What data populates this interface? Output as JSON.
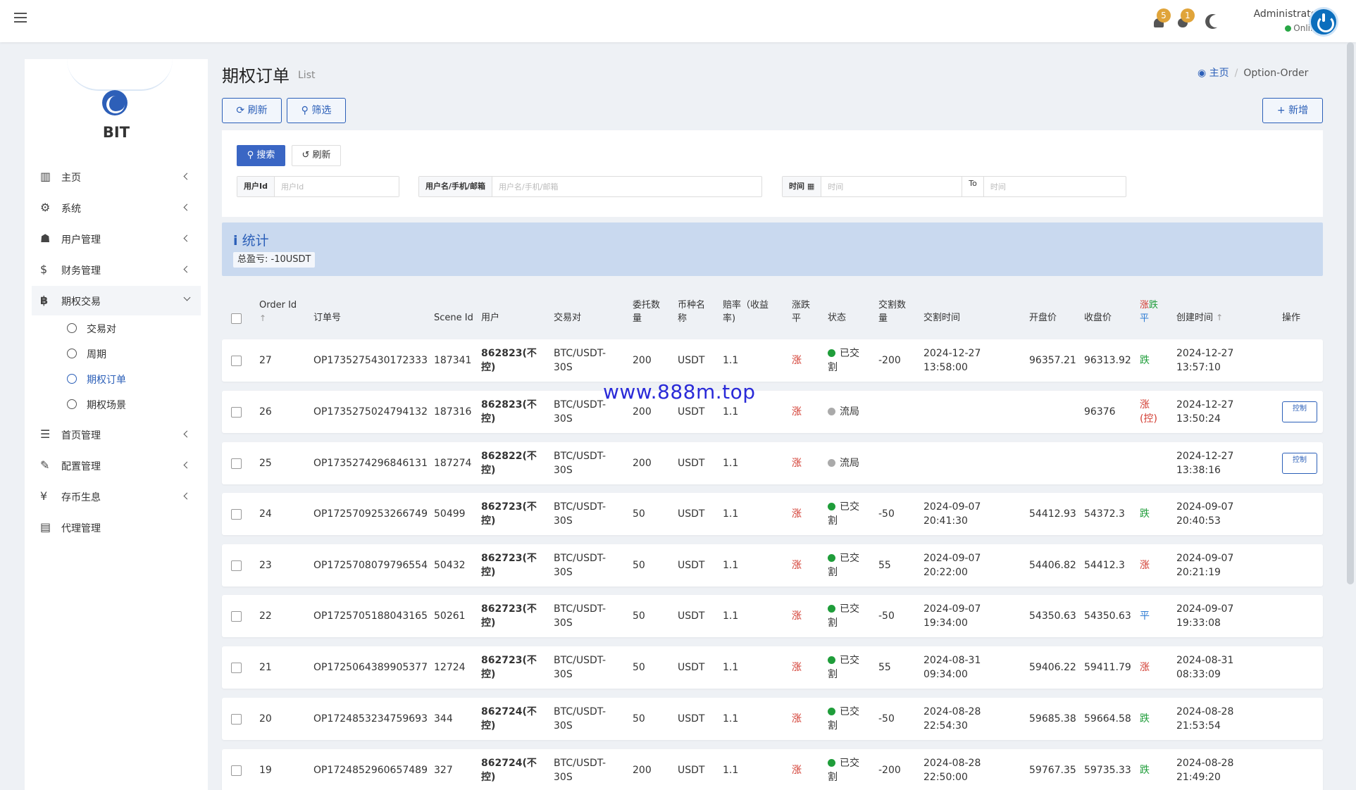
{
  "topbar": {
    "notif_count": "5",
    "message_count": "1",
    "user_name": "Administrator",
    "user_status": "Online"
  },
  "sidebar": {
    "logo_text": "BIT",
    "menu": [
      {
        "label": "主页",
        "icon": "chart-icon"
      },
      {
        "label": "系统",
        "icon": "gear-icon"
      },
      {
        "label": "用户管理",
        "icon": "users-icon"
      },
      {
        "label": "财务管理",
        "icon": "dollar-icon"
      },
      {
        "label": "期权交易",
        "icon": "bitcoin-icon"
      },
      {
        "label": "首页管理",
        "icon": "list-icon"
      },
      {
        "label": "配置管理",
        "icon": "wrench-icon"
      },
      {
        "label": "存币生息",
        "icon": "yen-icon"
      },
      {
        "label": "代理管理",
        "icon": "id-card-icon"
      }
    ],
    "submenu": [
      "交易对",
      "周期",
      "期权订单",
      "期权场景"
    ]
  },
  "page": {
    "title": "期权订单",
    "subtitle": "List",
    "breadcrumb_home": "主页",
    "breadcrumb_current": "Option-Order",
    "refresh_label": "刷新",
    "filter_label": "筛选",
    "add_label": "新增"
  },
  "filters": {
    "search_label": "搜索",
    "reset_label": "刷新",
    "userid_label": "用户Id",
    "userid_placeholder": "用户Id",
    "username_label": "用户名/手机/邮箱",
    "username_placeholder": "用户名/手机/邮箱",
    "time_label": "时间",
    "time_from_placeholder": "时间",
    "to_label": "To",
    "time_to_placeholder": "时间"
  },
  "stats": {
    "title": "统计",
    "total_profit": "总盈亏: -10USDT"
  },
  "table": {
    "headers": {
      "order_id": "Order Id",
      "order_no": "订单号",
      "scene_id": "Scene Id",
      "user": "用户",
      "pair": "交易对",
      "amount": "委托数量",
      "coin": "币种名称",
      "rate": "赔率（收益率)",
      "direction": "涨跌平",
      "status": "状态",
      "settle_amount": "交割数量",
      "settle_time": "交割时间",
      "open_price": "开盘价",
      "close_price": "收盘价",
      "result_up": "涨",
      "result_down": "跌",
      "result_flat": "平",
      "created": "创建时间",
      "actions": "操作"
    },
    "rows": [
      {
        "id": "27",
        "order_no": "OP1735275430172333",
        "scene": "187341",
        "user": "862823(不控)",
        "pair": "BTC/USDT-30S",
        "amount": "200",
        "coin": "USDT",
        "rate": "1.1",
        "dir": "涨",
        "status": "已交割",
        "status_color": "#1f9d3a",
        "settle_amt": "-200",
        "settle_time": "2024-12-27 13:58:00",
        "open": "96357.21",
        "close": "96313.92",
        "result": "跌",
        "result_color": "green",
        "created": "2024-12-27 13:57:10",
        "action": ""
      },
      {
        "id": "26",
        "order_no": "OP1735275024794132",
        "scene": "187316",
        "user": "862823(不控)",
        "pair": "BTC/USDT-30S",
        "amount": "200",
        "coin": "USDT",
        "rate": "1.1",
        "dir": "涨",
        "status": "流局",
        "status_color": "#aaaaaa",
        "settle_amt": "",
        "settle_time": "",
        "open": "",
        "close": "96376",
        "result": "涨(控)",
        "result_color": "red",
        "created": "2024-12-27 13:50:24",
        "action": "控制"
      },
      {
        "id": "25",
        "order_no": "OP1735274296846131",
        "scene": "187274",
        "user": "862822(不控)",
        "pair": "BTC/USDT-30S",
        "amount": "200",
        "coin": "USDT",
        "rate": "1.1",
        "dir": "涨",
        "status": "流局",
        "status_color": "#aaaaaa",
        "settle_amt": "",
        "settle_time": "",
        "open": "",
        "close": "",
        "result": "",
        "result_color": "red",
        "created": "2024-12-27 13:38:16",
        "action": "控制"
      },
      {
        "id": "24",
        "order_no": "OP1725709253266749",
        "scene": "50499",
        "user": "862723(不控)",
        "pair": "BTC/USDT-30S",
        "amount": "50",
        "coin": "USDT",
        "rate": "1.1",
        "dir": "涨",
        "status": "已交割",
        "status_color": "#1f9d3a",
        "settle_amt": "-50",
        "settle_time": "2024-09-07 20:41:30",
        "open": "54412.93",
        "close": "54372.3",
        "result": "跌",
        "result_color": "green",
        "created": "2024-09-07 20:40:53",
        "action": ""
      },
      {
        "id": "23",
        "order_no": "OP1725708079796554",
        "scene": "50432",
        "user": "862723(不控)",
        "pair": "BTC/USDT-30S",
        "amount": "50",
        "coin": "USDT",
        "rate": "1.1",
        "dir": "涨",
        "status": "已交割",
        "status_color": "#1f9d3a",
        "settle_amt": "55",
        "settle_time": "2024-09-07 20:22:00",
        "open": "54406.82",
        "close": "54412.3",
        "result": "涨",
        "result_color": "red",
        "created": "2024-09-07 20:21:19",
        "action": ""
      },
      {
        "id": "22",
        "order_no": "OP1725705188043165",
        "scene": "50261",
        "user": "862723(不控)",
        "pair": "BTC/USDT-30S",
        "amount": "50",
        "coin": "USDT",
        "rate": "1.1",
        "dir": "涨",
        "status": "已交割",
        "status_color": "#1f9d3a",
        "settle_amt": "-50",
        "settle_time": "2024-09-07 19:34:00",
        "open": "54350.63",
        "close": "54350.63",
        "result": "平",
        "result_color": "blue",
        "created": "2024-09-07 19:33:08",
        "action": ""
      },
      {
        "id": "21",
        "order_no": "OP1725064389905377",
        "scene": "12724",
        "user": "862723(不控)",
        "pair": "BTC/USDT-30S",
        "amount": "50",
        "coin": "USDT",
        "rate": "1.1",
        "dir": "涨",
        "status": "已交割",
        "status_color": "#1f9d3a",
        "settle_amt": "55",
        "settle_time": "2024-08-31 09:34:00",
        "open": "59406.22",
        "close": "59411.79",
        "result": "涨",
        "result_color": "red",
        "created": "2024-08-31 08:33:09",
        "action": ""
      },
      {
        "id": "20",
        "order_no": "OP1724853234759693",
        "scene": "344",
        "user": "862724(不控)",
        "pair": "BTC/USDT-30S",
        "amount": "50",
        "coin": "USDT",
        "rate": "1.1",
        "dir": "涨",
        "status": "已交割",
        "status_color": "#1f9d3a",
        "settle_amt": "-50",
        "settle_time": "2024-08-28 22:54:30",
        "open": "59685.38",
        "close": "59664.58",
        "result": "跌",
        "result_color": "green",
        "created": "2024-08-28 21:53:54",
        "action": ""
      },
      {
        "id": "19",
        "order_no": "OP1724852960657489",
        "scene": "327",
        "user": "862724(不控)",
        "pair": "BTC/USDT-30S",
        "amount": "200",
        "coin": "USDT",
        "rate": "1.1",
        "dir": "涨",
        "status": "已交割",
        "status_color": "#1f9d3a",
        "settle_amt": "-200",
        "settle_time": "2024-08-28 22:50:00",
        "open": "59767.35",
        "close": "59735.33",
        "result": "跌",
        "result_color": "green",
        "created": "2024-08-28 21:49:20",
        "action": ""
      }
    ]
  },
  "watermark": "www.888m.top"
}
